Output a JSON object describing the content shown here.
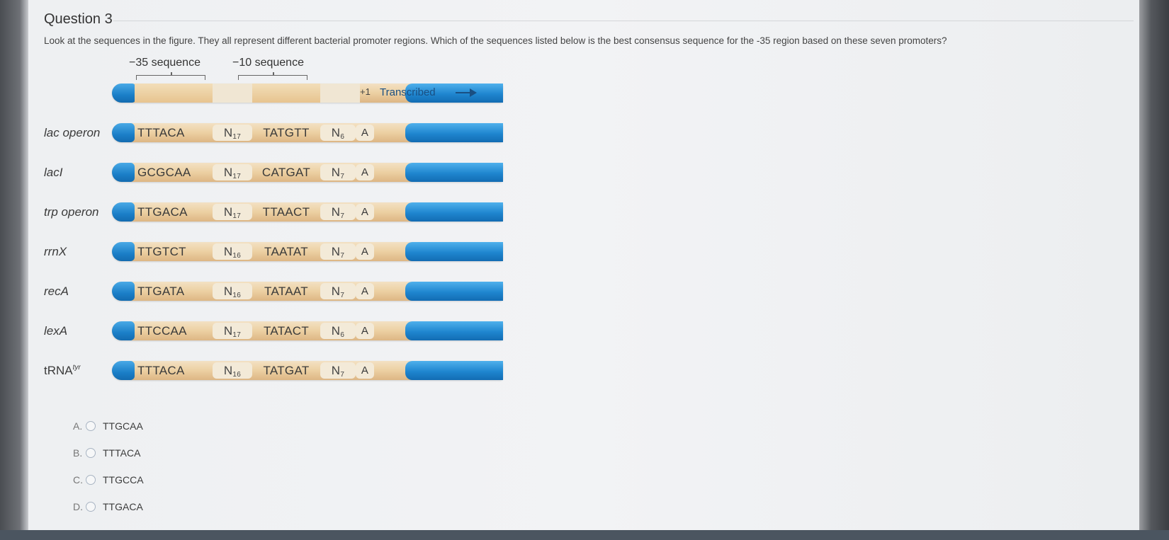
{
  "question": {
    "title": "Question 3",
    "text": "Look at the sequences in the figure. They all represent different bacterial promoter regions. Which of the sequences listed below is the best consensus sequence for the -35 region based on these seven promoters?"
  },
  "figure": {
    "label_35": "−35 sequence",
    "label_10": "−10 sequence",
    "plus1": "+1",
    "transcribed": "Transcribed",
    "rows": [
      {
        "name": "lac operon",
        "seq35": "TTTACA",
        "n1": "17",
        "seq10": "TATGTT",
        "n2": "6",
        "start": "A"
      },
      {
        "name": "lacI",
        "seq35": "GCGCAA",
        "n1": "17",
        "seq10": "CATGAT",
        "n2": "7",
        "start": "A"
      },
      {
        "name": "trp operon",
        "seq35": "TTGACA",
        "n1": "17",
        "seq10": "TTAACT",
        "n2": "7",
        "start": "A"
      },
      {
        "name": "rrnX",
        "seq35": "TTGTCT",
        "n1": "16",
        "seq10": "TAATAT",
        "n2": "7",
        "start": "A"
      },
      {
        "name": "recA",
        "seq35": "TTGATA",
        "n1": "16",
        "seq10": "TATAAT",
        "n2": "7",
        "start": "A"
      },
      {
        "name": "lexA",
        "seq35": "TTCCAA",
        "n1": "17",
        "seq10": "TATACT",
        "n2": "6",
        "start": "A"
      },
      {
        "name": "tRNA",
        "sup": "tyr",
        "seq35": "TTTACA",
        "n1": "16",
        "seq10": "TATGAT",
        "n2": "7",
        "start": "A"
      }
    ],
    "n_letter": "N"
  },
  "options": [
    {
      "letter": "A.",
      "text": "TTGCAA"
    },
    {
      "letter": "B.",
      "text": "TTTACA"
    },
    {
      "letter": "C.",
      "text": "TTGCCA"
    },
    {
      "letter": "D.",
      "text": "TTGACA"
    }
  ]
}
